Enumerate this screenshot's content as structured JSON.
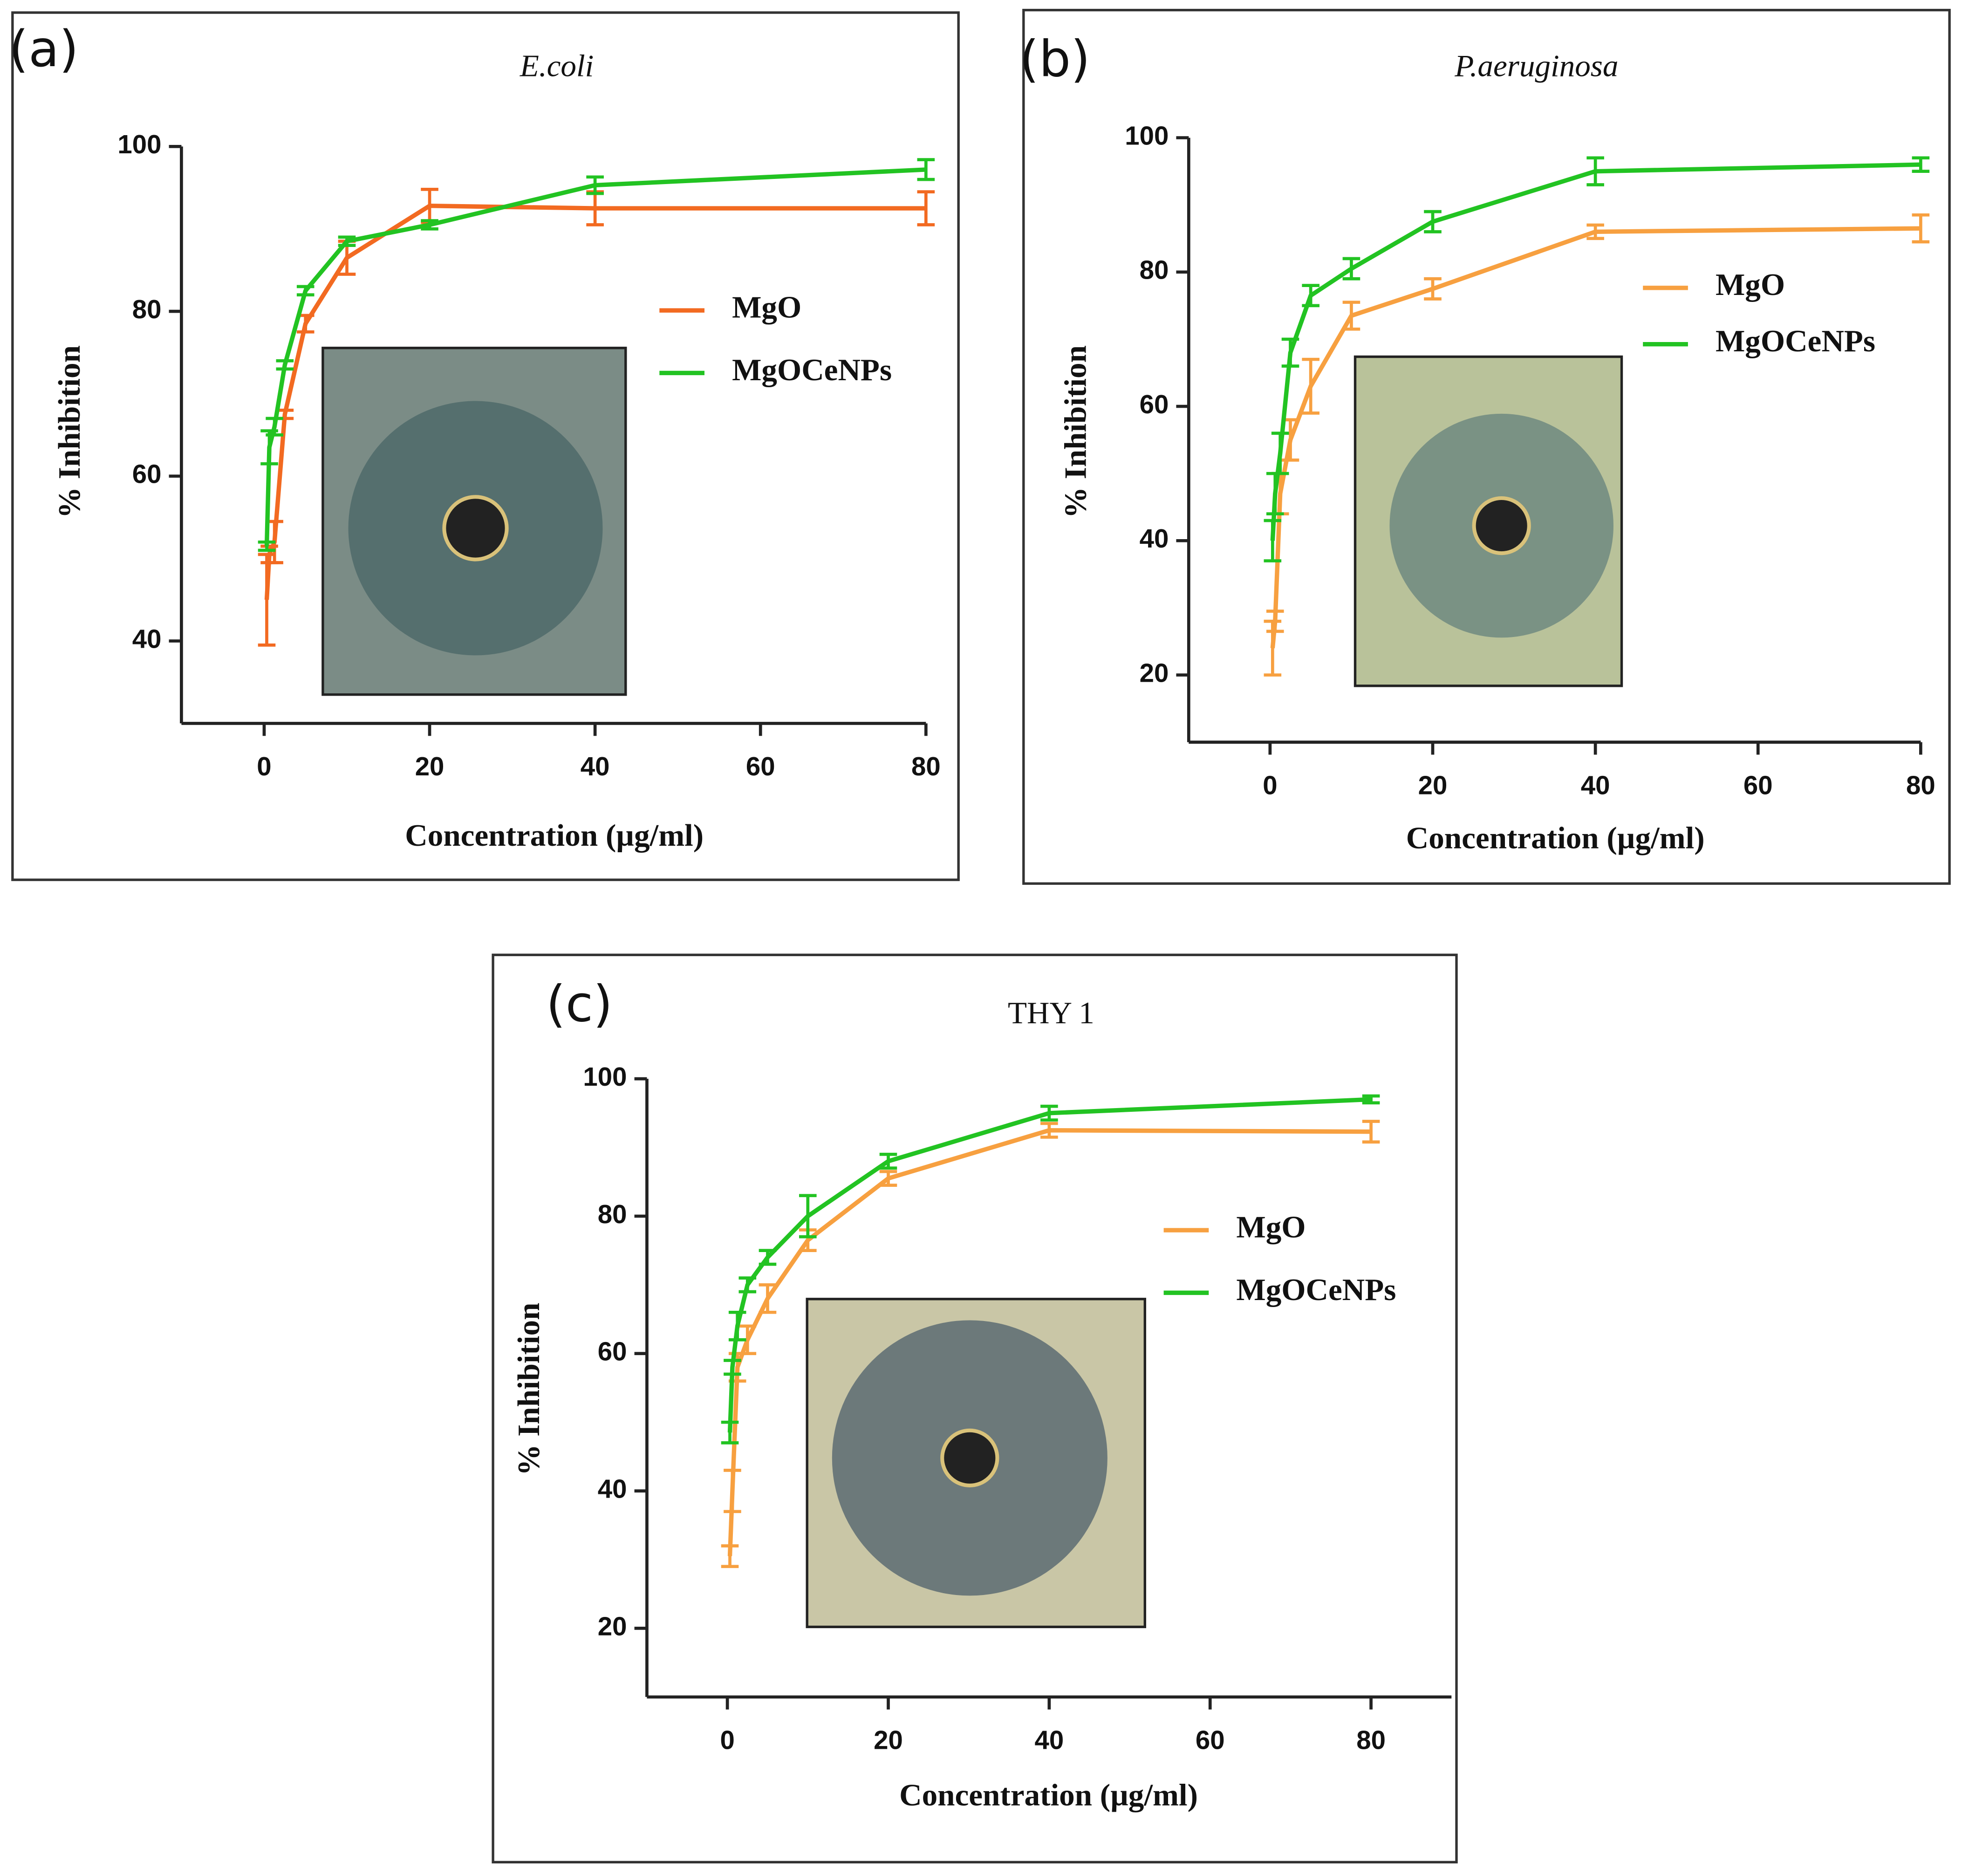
{
  "chart_data": [
    {
      "type": "line",
      "panel_label": "(a)",
      "title": "E.coli",
      "title_italic": true,
      "x_label": "Concentration (µg/ml)",
      "y_label": "% Inhibition",
      "x": [
        0.3125,
        0.625,
        1.25,
        2.5,
        5,
        10,
        20,
        40,
        80
      ],
      "xlim": [
        -10,
        80
      ],
      "xticks": [
        0,
        20,
        40,
        60,
        80
      ],
      "ylim": [
        30,
        100
      ],
      "yticks": [
        40,
        60,
        80,
        100
      ],
      "legend": "right",
      "series": [
        {
          "name": "MgO",
          "color": "#f26a21",
          "values": [
            45,
            50.5,
            52,
            67.5,
            78.5,
            86.5,
            92.8,
            92.5,
            92.5
          ],
          "errors": [
            5.5,
            1,
            2.5,
            0.5,
            1,
            2,
            2,
            2,
            2
          ]
        },
        {
          "name": "MgOCeNPs",
          "color": "#22c322",
          "values": [
            51.5,
            63.5,
            66,
            73.5,
            82.5,
            88.5,
            90.5,
            95.3,
            97.2
          ],
          "errors": [
            0.5,
            2,
            1,
            0.5,
            0.5,
            0.5,
            0.5,
            1,
            1.2
          ]
        }
      ]
    },
    {
      "type": "line",
      "panel_label": "(b)",
      "title": "P.aeruginosa",
      "title_italic": true,
      "x_label": "Concentration (µg/ml)",
      "y_label": "% Inhibition",
      "x": [
        0.3125,
        0.625,
        1.25,
        2.5,
        5,
        10,
        20,
        40,
        80
      ],
      "xlim": [
        -10,
        80
      ],
      "xticks": [
        0,
        20,
        40,
        60,
        80
      ],
      "ylim": [
        10,
        100
      ],
      "yticks": [
        20,
        40,
        60,
        80,
        100
      ],
      "legend": "right",
      "series": [
        {
          "name": "MgO",
          "color": "#f7a040",
          "values": [
            24,
            28,
            47,
            55,
            63,
            73.5,
            77.5,
            86,
            86.5
          ],
          "errors": [
            4,
            1.5,
            3,
            3,
            4,
            2,
            1.5,
            1,
            2
          ]
        },
        {
          "name": "MgOCeNPs",
          "color": "#22c322",
          "values": [
            40,
            47,
            53,
            68,
            76.5,
            80.5,
            87.5,
            95,
            96
          ],
          "errors": [
            3,
            3,
            3,
            2,
            1.5,
            1.5,
            1.5,
            2,
            1
          ]
        }
      ]
    },
    {
      "type": "line",
      "panel_label": "(c)",
      "title": "THY 1",
      "title_italic": false,
      "x_label": "Concentration (µg/ml)",
      "y_label": "% Inhibition",
      "x": [
        0.3125,
        0.625,
        1.25,
        2.5,
        5,
        10,
        20,
        40,
        80
      ],
      "xlim": [
        -10,
        90
      ],
      "xticks": [
        0,
        20,
        40,
        60,
        80
      ],
      "ylim": [
        10,
        100
      ],
      "yticks": [
        20,
        40,
        60,
        80,
        100
      ],
      "legend": "right",
      "series": [
        {
          "name": "MgO",
          "color": "#f7a040",
          "values": [
            30.5,
            40,
            58,
            62,
            68,
            76.5,
            85.5,
            92.5,
            92.3
          ],
          "errors": [
            1.5,
            3,
            2,
            2,
            2,
            1.5,
            1,
            1,
            1.5
          ]
        },
        {
          "name": "MgOCeNPs",
          "color": "#22c322",
          "values": [
            48.5,
            58,
            64,
            70,
            74,
            80,
            88,
            95,
            97
          ],
          "errors": [
            1.5,
            1,
            2,
            1,
            1,
            3,
            1,
            1,
            0.5
          ]
        }
      ]
    }
  ]
}
